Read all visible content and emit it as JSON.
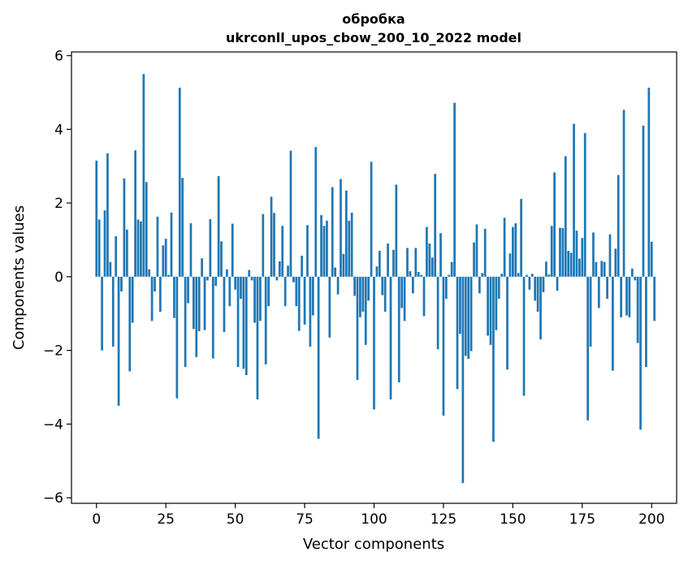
{
  "chart_data": {
    "type": "bar",
    "title": "обробка",
    "subtitle": "ukrconll_upos_cbow_200_10_2022 model",
    "xlabel": "Vector components",
    "ylabel": "Components values",
    "xlim": [
      -9,
      209
    ],
    "ylim": [
      -6.15,
      6.1
    ],
    "xticks": [
      0,
      25,
      50,
      75,
      100,
      125,
      150,
      175,
      200
    ],
    "yticks": [
      -6,
      -4,
      -2,
      0,
      2,
      4,
      6
    ],
    "ytick_labels": [
      "−6",
      "−4",
      "−2",
      "0",
      "2",
      "4",
      "6"
    ],
    "grid": false,
    "bar_color": "#1f77b4",
    "values": [
      3.15,
      1.55,
      -2.0,
      1.8,
      3.35,
      0.4,
      -1.9,
      1.1,
      -3.5,
      -0.4,
      2.67,
      1.28,
      -2.57,
      -1.25,
      3.43,
      1.55,
      1.5,
      5.5,
      2.57,
      0.2,
      -1.2,
      -0.4,
      1.63,
      -0.95,
      0.85,
      1.03,
      0.05,
      1.74,
      -1.12,
      -3.3,
      5.13,
      2.68,
      -2.45,
      -0.72,
      1.45,
      -1.42,
      -2.18,
      -1.48,
      0.5,
      -1.45,
      -0.1,
      1.56,
      -2.22,
      -0.25,
      2.73,
      0.96,
      -1.5,
      0.2,
      -0.8,
      1.44,
      -0.35,
      -2.45,
      -0.6,
      -2.5,
      -2.67,
      0.18,
      -0.1,
      -1.25,
      -3.33,
      -1.2,
      1.7,
      -2.38,
      -0.8,
      2.17,
      1.73,
      -0.1,
      0.42,
      1.38,
      -0.8,
      0.3,
      3.42,
      -0.15,
      -0.8,
      -1.47,
      0.57,
      -1.3,
      1.4,
      -1.9,
      -1.05,
      3.52,
      -4.4,
      1.67,
      1.38,
      1.52,
      -1.65,
      2.43,
      0.25,
      -0.48,
      2.65,
      0.62,
      2.34,
      1.52,
      1.74,
      -0.52,
      -2.8,
      -1.1,
      -0.95,
      -1.85,
      -0.65,
      3.12,
      -3.6,
      0.28,
      0.7,
      -0.5,
      -0.95,
      0.9,
      -3.33,
      0.73,
      2.5,
      -2.87,
      -0.85,
      -1.2,
      0.78,
      0.15,
      -0.45,
      0.78,
      0.13,
      0.05,
      -1.07,
      1.35,
      0.9,
      0.52,
      2.79,
      -1.97,
      1.18,
      -3.77,
      -0.6,
      0.05,
      0.4,
      4.72,
      -3.05,
      -1.55,
      -5.6,
      -2.15,
      -2.23,
      -2.02,
      0.93,
      1.42,
      -0.45,
      0.1,
      1.3,
      -1.6,
      -1.85,
      -4.48,
      -1.45,
      -0.6,
      0.08,
      1.6,
      -2.52,
      0.63,
      1.35,
      1.45,
      0.1,
      2.11,
      -3.23,
      0.05,
      -0.35,
      0.08,
      -0.65,
      -0.95,
      -1.7,
      -0.42,
      0.41,
      0.06,
      1.38,
      2.83,
      -0.38,
      1.33,
      1.32,
      3.27,
      0.7,
      0.65,
      4.15,
      1.25,
      0.49,
      1.05,
      3.9,
      -3.9,
      -1.9,
      1.2,
      0.4,
      -0.85,
      0.43,
      0.4,
      -0.6,
      1.15,
      -2.55,
      0.76,
      2.76,
      -1.1,
      4.53,
      -1.05,
      -1.1,
      0.22,
      -0.1,
      -1.8,
      -4.15,
      4.1,
      -2.45,
      5.13,
      0.95,
      -1.2
    ]
  }
}
